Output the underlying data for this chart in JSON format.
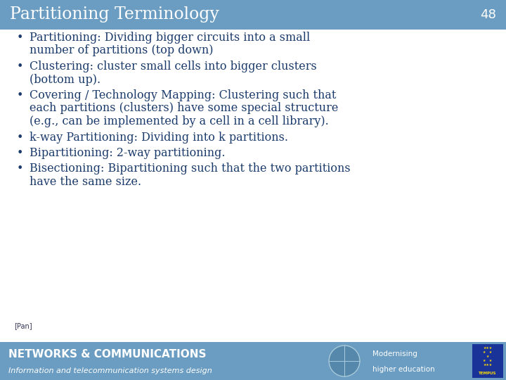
{
  "title": "Partitioning Terminology",
  "slide_number": "48",
  "header_bg_color": "#6b9dc2",
  "header_text_color": "#ffffff",
  "body_bg_color": "#ffffff",
  "body_text_color": "#1a3a6b",
  "footer_bg_color": "#6b9dc2",
  "footer_text_color": "#ffffff",
  "footer_main": "NETWORKS & COMMUNICATIONS",
  "footer_sub": "Information and telecommunication systems design",
  "footer_right1": "Modernising",
  "footer_right2": "higher education",
  "citation": "[Pan]",
  "bullet_points": [
    "Partitioning: Dividing bigger circuits into a small\nnumber of partitions (top down)",
    "Clustering: cluster small cells into bigger clusters\n(bottom up).",
    "Covering / Technology Mapping: Clustering such that\neach partitions (clusters) have some special structure\n(e.g., can be implemented by a cell in a cell library).",
    "k-way Partitioning: Dividing into k partitions.",
    "Bipartitioning: 2-way partitioning.",
    "Bisectioning: Bipartitioning such that the two partitions\nhave the same size."
  ],
  "title_fontsize": 17,
  "slide_num_fontsize": 13,
  "bullet_fontsize": 11.5,
  "citation_fontsize": 7,
  "footer_main_fontsize": 11,
  "footer_sub_fontsize": 8
}
